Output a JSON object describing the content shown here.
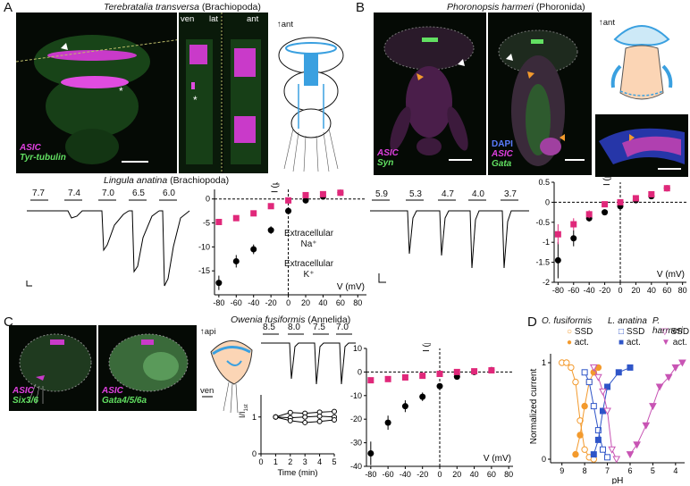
{
  "panelA": {
    "letter": "A",
    "species": "Terebratalia transversa",
    "taxon": "(Brachiopoda)",
    "view_labels": [
      "ven",
      "lat",
      "ant"
    ],
    "axis": "ant",
    "stain_1": "ASIC",
    "stain_2": "Tyr-tubulin",
    "markers": [
      "*",
      "*"
    ],
    "trace_title_species": "Lingula anatina",
    "trace_title_taxon": "(Brachiopoda)",
    "trace_ph": [
      "7.7",
      "7.4",
      "7.0",
      "6.5",
      "6.0"
    ],
    "legend_na_1": "Extracellular",
    "legend_na_2": "Na⁺",
    "legend_k_1": "Extracellular",
    "legend_k_2": "K⁺",
    "ylabel": "I (μA)",
    "xlabel": "V (mV)"
  },
  "panelB": {
    "letter": "B",
    "species": "Phoronopsis harmeri",
    "taxon": "(Phoronida)",
    "axis": "ant",
    "stain_1": "ASIC",
    "stain_2": "Syn",
    "stain_3": "DAPI",
    "stain_4": "ASIC",
    "stain_5": "Gata",
    "trace_ph": [
      "5.9",
      "5.3",
      "4.7",
      "4.0",
      "3.7"
    ],
    "ylabel": "I (μA)",
    "xlabel": "V (mV)"
  },
  "panelC": {
    "letter": "C",
    "species": "Owenia fusiformis",
    "taxon": "(Annelida)",
    "axis_api": "api",
    "axis_ven": "ven",
    "stain_1": "ASIC",
    "stain_2": "Six3/6",
    "stain_3": "ASIC",
    "stain_4": "Gata4/5/6a",
    "trace_ph": [
      "8.5",
      "8.0",
      "7.5",
      "7.0"
    ],
    "time_label": "Time (min)",
    "i_label": "I/I",
    "i_sub": "1st",
    "ylabel": "I (μA)",
    "xlabel": "V (mV)"
  },
  "panelD": {
    "letter": "D",
    "species": [
      "O. fusiformis",
      "L. anatina",
      "P. harmeri"
    ],
    "legend_ssd": "SSD",
    "legend_act": "act.",
    "ylabel": "Normalized current",
    "xlabel": "pH"
  },
  "colors": {
    "magenta": "#e0287a",
    "orange": "#f39a2d",
    "blue": "#2f55c8",
    "pink": "#c854b4",
    "green": "#62e062",
    "asic": "#e040e0"
  },
  "chart_data": [
    {
      "type": "scatter",
      "id": "A-IV",
      "xlabel": "V (mV)",
      "ylabel": "I (μA)",
      "xlim": [
        -85,
        90
      ],
      "ylim": [
        -20,
        2
      ],
      "xticks": [
        -80,
        -60,
        -40,
        -20,
        0,
        20,
        40,
        60,
        80
      ],
      "yticks": [
        0,
        -5,
        -10,
        -15
      ],
      "series": [
        {
          "name": "Extracellular Na⁺",
          "color": "#000000",
          "x": [
            -80,
            -60,
            -40,
            -20,
            0,
            20,
            40,
            60
          ],
          "y": [
            -17.5,
            -13,
            -10.5,
            -6.5,
            -2.5,
            -0.3,
            0.5,
            1.3
          ],
          "err": [
            1.5,
            1.3,
            1,
            0.8,
            0.5,
            0.3,
            0.3,
            0.3
          ]
        },
        {
          "name": "Extracellular K⁺",
          "color": "#e0287a",
          "x": [
            -80,
            -60,
            -40,
            -20,
            0,
            20,
            40,
            60
          ],
          "y": [
            -4.8,
            -4,
            -3,
            -1.5,
            -0.3,
            0.8,
            1,
            1.3
          ],
          "err": [
            0.6,
            0.5,
            0.4,
            0.3,
            0.2,
            0.2,
            0.2,
            0.2
          ]
        }
      ]
    },
    {
      "type": "scatter",
      "id": "B-IV",
      "xlabel": "V (mV)",
      "ylabel": "I (μA)",
      "xlim": [
        -85,
        85
      ],
      "ylim": [
        -2,
        0.5
      ],
      "xticks": [
        -80,
        -60,
        -40,
        -20,
        0,
        20,
        40,
        60,
        80
      ],
      "yticks": [
        0.5,
        0,
        -0.5,
        -1,
        -1.5,
        -2
      ],
      "series": [
        {
          "name": "Na⁺",
          "color": "#000000",
          "x": [
            -80,
            -60,
            -40,
            -20,
            0,
            20,
            40,
            60
          ],
          "y": [
            -1.45,
            -0.9,
            -0.4,
            -0.25,
            -0.1,
            0.05,
            0.15,
            0.35
          ],
          "err": [
            0.45,
            0.2,
            0.08,
            0.06,
            0.05,
            0.04,
            0.05,
            0.05
          ]
        },
        {
          "name": "K⁺",
          "color": "#e0287a",
          "x": [
            -80,
            -60,
            -40,
            -20,
            0,
            20,
            40,
            60
          ],
          "y": [
            -0.8,
            -0.55,
            -0.3,
            -0.05,
            0.0,
            0.1,
            0.2,
            0.35
          ],
          "err": [
            0.25,
            0.15,
            0.1,
            0.05,
            0.05,
            0.04,
            0.05,
            0.05
          ]
        }
      ]
    },
    {
      "type": "scatter",
      "id": "C-IV",
      "xlabel": "V (mV)",
      "ylabel": "I (μA)",
      "xlim": [
        -85,
        85
      ],
      "ylim": [
        -40,
        10
      ],
      "xticks": [
        -80,
        -60,
        -40,
        -20,
        0,
        20,
        40,
        60,
        80
      ],
      "yticks": [
        10,
        0,
        -10,
        -20,
        -30,
        -40
      ],
      "series": [
        {
          "name": "Na⁺",
          "color": "#000000",
          "x": [
            -80,
            -60,
            -40,
            -20,
            0,
            20,
            40,
            60
          ],
          "y": [
            -34.5,
            -21.5,
            -14.5,
            -10.5,
            -6,
            -2,
            0,
            0.8
          ],
          "err": [
            5,
            3,
            2.5,
            1.8,
            1.2,
            0.6,
            0.4,
            0.4
          ]
        },
        {
          "name": "K⁺",
          "color": "#e0287a",
          "x": [
            -80,
            -60,
            -40,
            -20,
            0,
            20,
            40,
            60
          ],
          "y": [
            -3.5,
            -3,
            -2.3,
            -1.6,
            -0.8,
            0,
            0.3,
            0.7
          ],
          "err": [
            0.5,
            0.4,
            0.3,
            0.3,
            0.2,
            0.2,
            0.2,
            0.2
          ]
        }
      ]
    },
    {
      "type": "line",
      "id": "C-time",
      "xlabel": "Time (min)",
      "ylabel": "I/I1st",
      "xlim": [
        0,
        5
      ],
      "ylim": [
        0,
        1.6
      ],
      "xticks": [
        0,
        1,
        2,
        3,
        4,
        5
      ],
      "yticks": [
        0,
        1
      ],
      "series": [
        {
          "x": [
            1,
            2,
            3,
            4,
            5
          ],
          "y": [
            1,
            1.12,
            1.1,
            1.13,
            1.15
          ]
        },
        {
          "x": [
            1,
            2,
            3,
            4,
            5
          ],
          "y": [
            1,
            0.98,
            1,
            1.02,
            1.0
          ]
        },
        {
          "x": [
            1,
            2,
            3,
            4,
            5
          ],
          "y": [
            1,
            0.9,
            0.85,
            0.88,
            0.92
          ]
        }
      ]
    },
    {
      "type": "line",
      "id": "D-dose",
      "xlabel": "pH",
      "ylabel": "Normalized current",
      "xlim": [
        9.5,
        3.6
      ],
      "ylim": [
        0,
        1
      ],
      "xticks": [
        9,
        8,
        7,
        6,
        5,
        4
      ],
      "yticks": [
        0,
        1
      ],
      "series": [
        {
          "name": "O. fusiformis SSD",
          "color": "#f39a2d",
          "filled": false,
          "x": [
            9.0,
            8.8,
            8.6,
            8.4,
            8.2,
            8.0,
            7.8,
            7.6
          ],
          "y": [
            1.0,
            1.0,
            0.95,
            0.8,
            0.4,
            0.1,
            0.02,
            0.0
          ]
        },
        {
          "name": "O. fusiformis act.",
          "color": "#f39a2d",
          "filled": true,
          "x": [
            8.4,
            8.2,
            8.0,
            7.8,
            7.6,
            7.4
          ],
          "y": [
            0.05,
            0.25,
            0.55,
            0.8,
            0.9,
            0.95
          ]
        },
        {
          "name": "L. anatina SSD",
          "color": "#2f55c8",
          "filled": false,
          "x": [
            8.0,
            7.8,
            7.6,
            7.4,
            7.2,
            7.0
          ],
          "y": [
            0.9,
            0.8,
            0.55,
            0.3,
            0.1,
            0.02
          ]
        },
        {
          "name": "L. anatina act.",
          "color": "#2f55c8",
          "filled": true,
          "x": [
            7.6,
            7.4,
            7.2,
            7.0,
            6.5,
            6.0
          ],
          "y": [
            0.05,
            0.2,
            0.5,
            0.75,
            0.9,
            0.95
          ]
        },
        {
          "name": "P. harmeri SSD",
          "color": "#c854b4",
          "filled": false,
          "x": [
            7.6,
            7.4,
            7.2,
            7.0,
            6.8,
            6.6
          ],
          "y": [
            0.95,
            0.85,
            0.7,
            0.5,
            0.1,
            0.0
          ]
        },
        {
          "name": "P. harmeri act.",
          "color": "#c854b4",
          "filled": true,
          "x": [
            6.0,
            5.7,
            5.3,
            5.0,
            4.7,
            4.3,
            4.0,
            3.7
          ],
          "y": [
            0.05,
            0.15,
            0.35,
            0.55,
            0.75,
            0.85,
            0.95,
            1.0
          ]
        }
      ]
    }
  ]
}
